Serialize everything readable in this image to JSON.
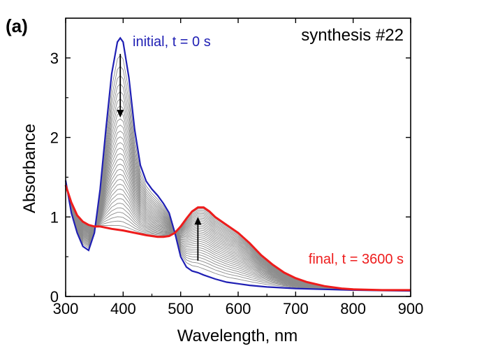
{
  "chart_data": {
    "type": "line",
    "panel_label": "(a)",
    "title": "synthesis #22",
    "xlabel": "Wavelength, nm",
    "ylabel": "Absorbance",
    "xlim": [
      300,
      900
    ],
    "ylim": [
      0,
      3.5
    ],
    "xticks": [
      300,
      400,
      500,
      600,
      700,
      800,
      900
    ],
    "yticks": [
      0,
      1,
      2,
      3
    ],
    "grid": false,
    "colors": {
      "initial": "#1f1fb4",
      "final": "#ee1c1c",
      "intermediate": "#8c8c8c",
      "arrow": "#000000"
    },
    "annotations": {
      "initial_label": "initial, t = 0 s",
      "final_label": "final, t = 3600 s"
    },
    "arrows": [
      {
        "x": 395,
        "y_from": 3.05,
        "y_to": 2.25,
        "direction": "down"
      },
      {
        "x": 530,
        "y_from": 0.45,
        "y_to": 1.0,
        "direction": "up"
      }
    ],
    "intermediate_series_count": 30,
    "series": [
      {
        "name": "initial, t = 0 s",
        "x": [
          300,
          310,
          320,
          330,
          340,
          350,
          360,
          370,
          380,
          390,
          395,
          400,
          410,
          420,
          430,
          440,
          450,
          460,
          470,
          480,
          490,
          500,
          510,
          520,
          530,
          540,
          560,
          580,
          600,
          620,
          650,
          700,
          750,
          800,
          850,
          900
        ],
        "y": [
          1.46,
          1.05,
          0.8,
          0.63,
          0.58,
          0.8,
          1.35,
          2.1,
          2.8,
          3.2,
          3.25,
          3.2,
          2.75,
          2.1,
          1.65,
          1.45,
          1.35,
          1.27,
          1.17,
          1.05,
          0.8,
          0.5,
          0.37,
          0.32,
          0.3,
          0.27,
          0.22,
          0.18,
          0.16,
          0.14,
          0.12,
          0.1,
          0.09,
          0.08,
          0.075,
          0.07
        ]
      },
      {
        "name": "final, t = 3600 s",
        "x": [
          300,
          310,
          320,
          330,
          340,
          350,
          360,
          380,
          400,
          420,
          440,
          460,
          470,
          480,
          490,
          500,
          510,
          520,
          530,
          540,
          550,
          560,
          580,
          600,
          620,
          640,
          660,
          680,
          700,
          720,
          750,
          780,
          800,
          850,
          900
        ],
        "y": [
          1.4,
          1.18,
          1.02,
          0.94,
          0.9,
          0.88,
          0.88,
          0.85,
          0.83,
          0.8,
          0.77,
          0.75,
          0.75,
          0.76,
          0.8,
          0.88,
          0.98,
          1.07,
          1.12,
          1.12,
          1.07,
          1.0,
          0.9,
          0.8,
          0.67,
          0.52,
          0.4,
          0.3,
          0.23,
          0.18,
          0.13,
          0.1,
          0.09,
          0.08,
          0.08
        ]
      }
    ]
  }
}
